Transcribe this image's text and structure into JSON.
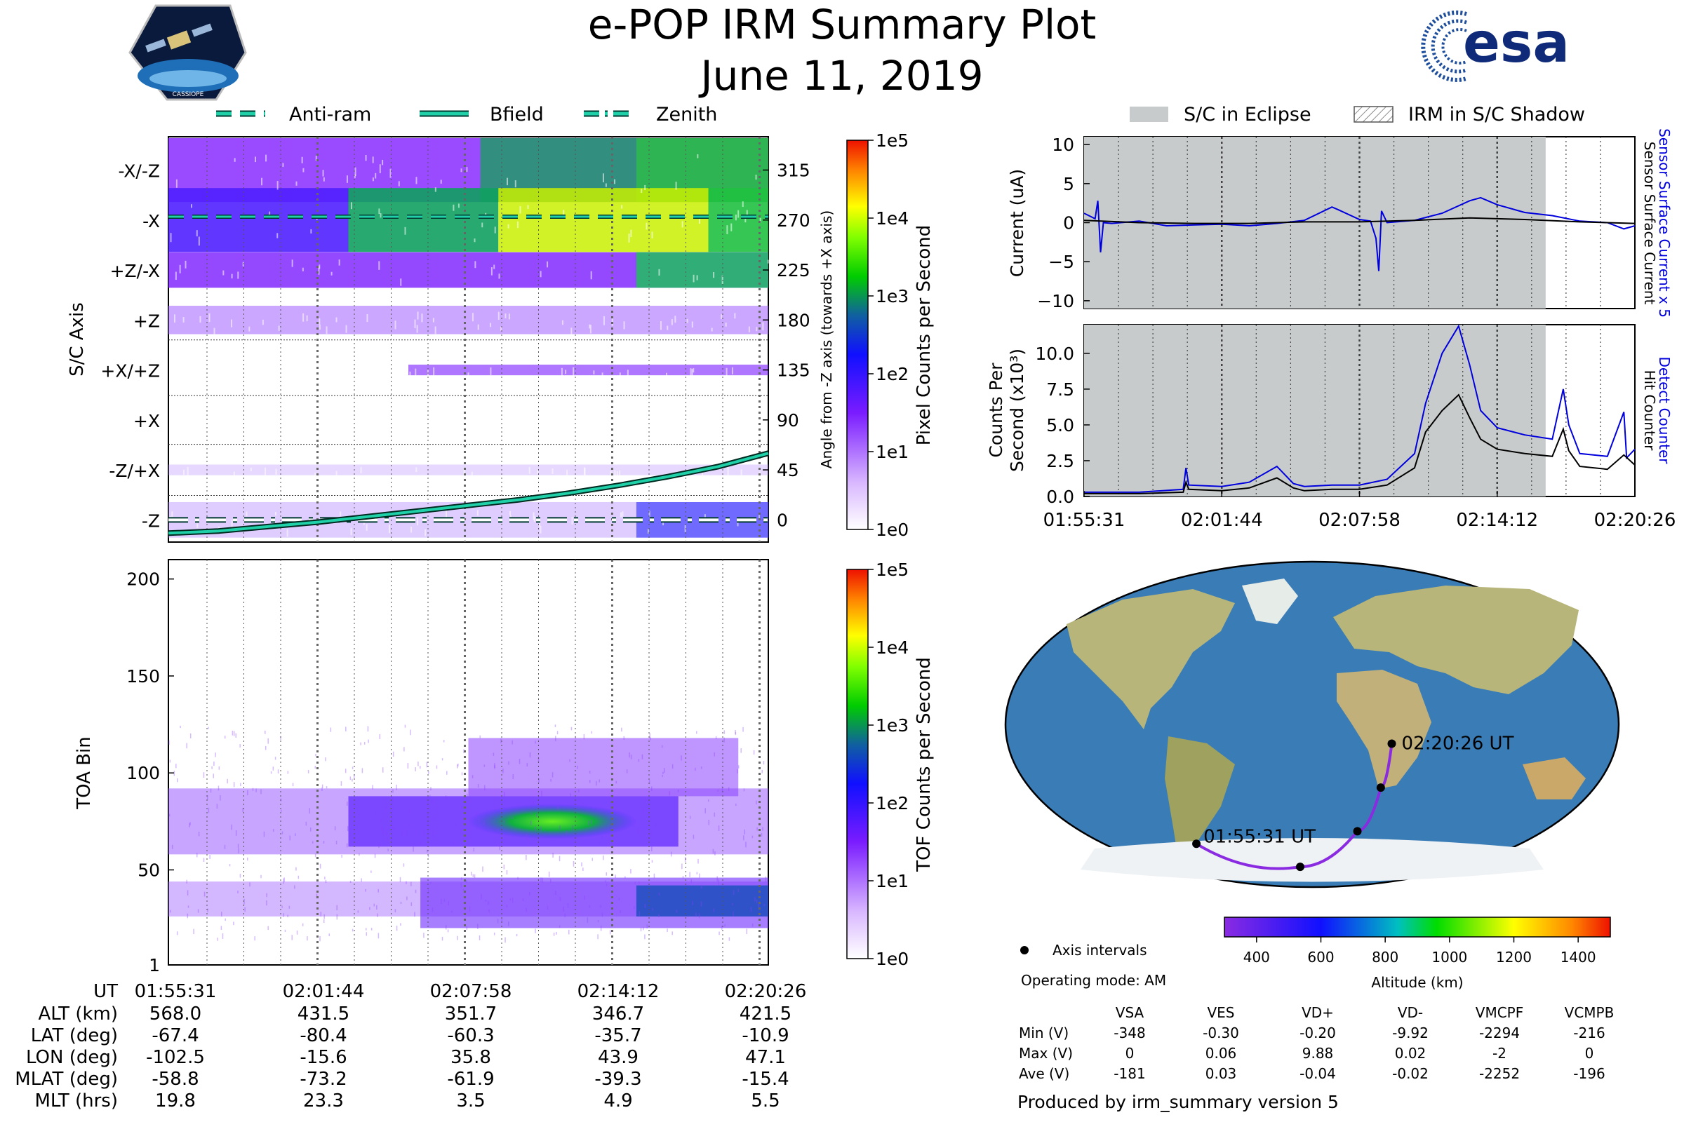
{
  "header": {
    "title": "e-POP IRM Summary Plot",
    "date": "June 11, 2019",
    "logo_left_text": "CASSIOPE",
    "logo_right_text": "esa"
  },
  "colors": {
    "anti_ram": "#1fd0a8",
    "bfield": "#1fd0a8",
    "zenith": "#1fd0a8",
    "eclipse": "#c8cbcb",
    "sensor_current": "#0000dd",
    "detect_counter": "#0000dd",
    "track": "#8a2be2",
    "ocean": "#3a7cb5",
    "land": "#b9b87a",
    "ice": "#eef2f5"
  },
  "legend_top_left": [
    {
      "label": "Anti-ram",
      "style": "dashed"
    },
    {
      "label": "Bfield",
      "style": "solid"
    },
    {
      "label": "Zenith",
      "style": "dashdot"
    }
  ],
  "legend_top_right": [
    {
      "label": "S/C in Eclipse",
      "style": "fill"
    },
    {
      "label": "IRM in S/C Shadow",
      "style": "hatch"
    }
  ],
  "time_ticks": [
    "01:55:31",
    "02:01:44",
    "02:07:58",
    "02:14:12",
    "02:20:26"
  ],
  "chart_data": [
    {
      "id": "sc_axis_panel",
      "type": "heatmap",
      "ylabel": "S/C Axis",
      "ylabel_right": "Angle from -Z axis (towards +X axis)",
      "axis_labels": [
        "-X/-Z",
        "-X",
        "+Z/-X",
        "+Z",
        "+X/+Z",
        "+X",
        "-Z/+X",
        "-Z"
      ],
      "angle_ticks": [
        "315",
        "270",
        "225",
        "180",
        "135",
        "90",
        "45",
        "0"
      ],
      "ylim": [
        -20,
        345
      ],
      "bfield_angle": [
        -12,
        -10,
        -6,
        -2,
        3,
        8,
        13,
        18,
        24,
        31,
        39,
        48,
        60
      ],
      "anti_ram_angle": 273,
      "zenith_angle": 0,
      "colorbar_label": "Pixel Counts per Second",
      "colorbar_ticks": [
        "1e5",
        "1e4",
        "1e3",
        "1e2",
        "1e1",
        "1e0"
      ]
    },
    {
      "id": "toa_panel",
      "type": "heatmap",
      "ylabel": "TOA Bin",
      "y_ticks": [
        "200",
        "150",
        "100",
        "50",
        "1"
      ],
      "ylim": [
        1,
        210
      ],
      "colorbar_label": "TOF Counts per Second",
      "colorbar_ticks": [
        "1e5",
        "1e4",
        "1e3",
        "1e2",
        "1e1",
        "1e0"
      ]
    },
    {
      "id": "current_panel",
      "type": "line",
      "ylabel": "Current (uA)",
      "ylim": [
        -11,
        11
      ],
      "y_ticks": [
        "10",
        "5",
        "0",
        "−5",
        "−10"
      ],
      "right_label_1": "Sensor Surface Current x 5",
      "right_label_2": "Sensor Surface Current",
      "series": [
        {
          "name": "Sensor Surface Current x 5",
          "color": "#0000dd",
          "x": [
            0,
            0.02,
            0.025,
            0.03,
            0.035,
            0.05,
            0.1,
            0.15,
            0.2,
            0.25,
            0.3,
            0.35,
            0.4,
            0.45,
            0.46,
            0.5,
            0.52,
            0.53,
            0.535,
            0.54,
            0.55,
            0.6,
            0.65,
            0.7,
            0.72,
            0.75,
            0.8,
            0.85,
            0.9,
            0.95,
            0.98,
            1
          ],
          "values": [
            1.2,
            0.5,
            2.8,
            -3.8,
            0.0,
            -0.1,
            0.2,
            -0.4,
            -0.3,
            -0.2,
            -0.4,
            -0.1,
            0.3,
            2.0,
            1.7,
            0.4,
            0.2,
            -2.0,
            -6.2,
            1.5,
            0.0,
            0.3,
            1.2,
            2.8,
            3.2,
            2.3,
            1.3,
            0.9,
            0.2,
            0.0,
            -0.8,
            -0.4
          ]
        },
        {
          "name": "Sensor Surface Current",
          "color": "#000000",
          "x": [
            0,
            0.1,
            0.2,
            0.3,
            0.4,
            0.5,
            0.6,
            0.7,
            0.8,
            0.9,
            1
          ],
          "values": [
            0.3,
            0.0,
            -0.1,
            -0.1,
            0.1,
            0.1,
            0.3,
            0.6,
            0.4,
            0.1,
            -0.1
          ]
        }
      ]
    },
    {
      "id": "counts_panel",
      "type": "line",
      "ylabel_1": "Counts Per",
      "ylabel_2": "Second (x10³)",
      "ylim": [
        0,
        12
      ],
      "y_ticks": [
        "10.0",
        "7.5",
        "5.0",
        "2.5",
        "0.0"
      ],
      "right_label_1": "Detect Counter",
      "right_label_2": "Hit Counter",
      "series": [
        {
          "name": "Detect Counter",
          "color": "#0000dd",
          "x": [
            0,
            0.1,
            0.18,
            0.185,
            0.19,
            0.25,
            0.3,
            0.35,
            0.38,
            0.4,
            0.45,
            0.5,
            0.55,
            0.6,
            0.62,
            0.65,
            0.68,
            0.7,
            0.72,
            0.75,
            0.8,
            0.85,
            0.87,
            0.88,
            0.9,
            0.95,
            0.98,
            0.985,
            1
          ],
          "values": [
            0.3,
            0.3,
            0.5,
            2.0,
            0.8,
            0.7,
            1.0,
            2.1,
            0.9,
            0.7,
            0.8,
            0.8,
            1.2,
            3.0,
            6.5,
            10.0,
            11.9,
            9.2,
            6.0,
            4.8,
            4.3,
            4.0,
            7.5,
            5.0,
            3.0,
            2.8,
            5.9,
            2.7,
            3.3
          ]
        },
        {
          "name": "Hit Counter",
          "color": "#000000",
          "x": [
            0,
            0.1,
            0.18,
            0.185,
            0.19,
            0.25,
            0.3,
            0.35,
            0.38,
            0.4,
            0.45,
            0.5,
            0.55,
            0.6,
            0.62,
            0.65,
            0.68,
            0.7,
            0.72,
            0.75,
            0.8,
            0.85,
            0.87,
            0.88,
            0.9,
            0.95,
            0.98,
            1
          ],
          "values": [
            0.2,
            0.2,
            0.3,
            1.0,
            0.5,
            0.4,
            0.6,
            1.3,
            0.6,
            0.4,
            0.5,
            0.5,
            0.8,
            2.0,
            4.5,
            6.0,
            7.1,
            5.5,
            4.0,
            3.3,
            3.0,
            2.8,
            4.7,
            3.2,
            2.1,
            1.9,
            2.9,
            2.2
          ]
        }
      ]
    },
    {
      "id": "ground_track",
      "type": "scatter",
      "start_label": "01:55:31 UT",
      "end_label": "02:20:26 UT",
      "lat": [
        -67.4,
        -80.4,
        -60.3,
        -35.7,
        -10.9
      ],
      "lon": [
        -102.5,
        -15.6,
        35.8,
        43.9,
        47.1
      ],
      "altitude_km": [
        568.0,
        431.5,
        351.7,
        346.7,
        421.5
      ],
      "colorbar_label": "Altitude (km)",
      "colorbar_ticks": [
        "400",
        "600",
        "800",
        "1000",
        "1200",
        "1400"
      ],
      "colorbar_range": [
        300,
        1500
      ]
    }
  ],
  "ephemeris": {
    "header": "UT",
    "times": [
      "01:55:31",
      "02:01:44",
      "02:07:58",
      "02:14:12",
      "02:20:26"
    ],
    "rows": [
      {
        "label": "ALT (km)",
        "values": [
          "568.0",
          "431.5",
          "351.7",
          "346.7",
          "421.5"
        ]
      },
      {
        "label": "LAT (deg)",
        "values": [
          "-67.4",
          "-80.4",
          "-60.3",
          "-35.7",
          "-10.9"
        ]
      },
      {
        "label": "LON (deg)",
        "values": [
          "-102.5",
          "-15.6",
          "35.8",
          "43.9",
          "47.1"
        ]
      },
      {
        "label": "MLAT (deg)",
        "values": [
          "-58.8",
          "-73.2",
          "-61.9",
          "-39.3",
          "-15.4"
        ]
      },
      {
        "label": "MLT (hrs)",
        "values": [
          "19.8",
          "23.3",
          "3.5",
          "4.9",
          "5.5"
        ]
      }
    ]
  },
  "info": {
    "axis_intervals": "Axis intervals",
    "operating_mode": "Operating mode: AM",
    "produced_by": "Produced by irm_summary version 5"
  },
  "voltage_table": {
    "columns": [
      "VSA",
      "VES",
      "VD+",
      "VD-",
      "VMCPF",
      "VCMPB"
    ],
    "rows": [
      {
        "label": "Min (V)",
        "values": [
          "-348",
          "-0.30",
          "-0.20",
          "-9.92",
          "-2294",
          "-216"
        ]
      },
      {
        "label": "Max (V)",
        "values": [
          "0",
          "0.06",
          "9.88",
          "0.02",
          "-2",
          "0"
        ]
      },
      {
        "label": "Ave (V)",
        "values": [
          "-181",
          "0.03",
          "-0.04",
          "-0.02",
          "-2252",
          "-196"
        ]
      }
    ]
  }
}
